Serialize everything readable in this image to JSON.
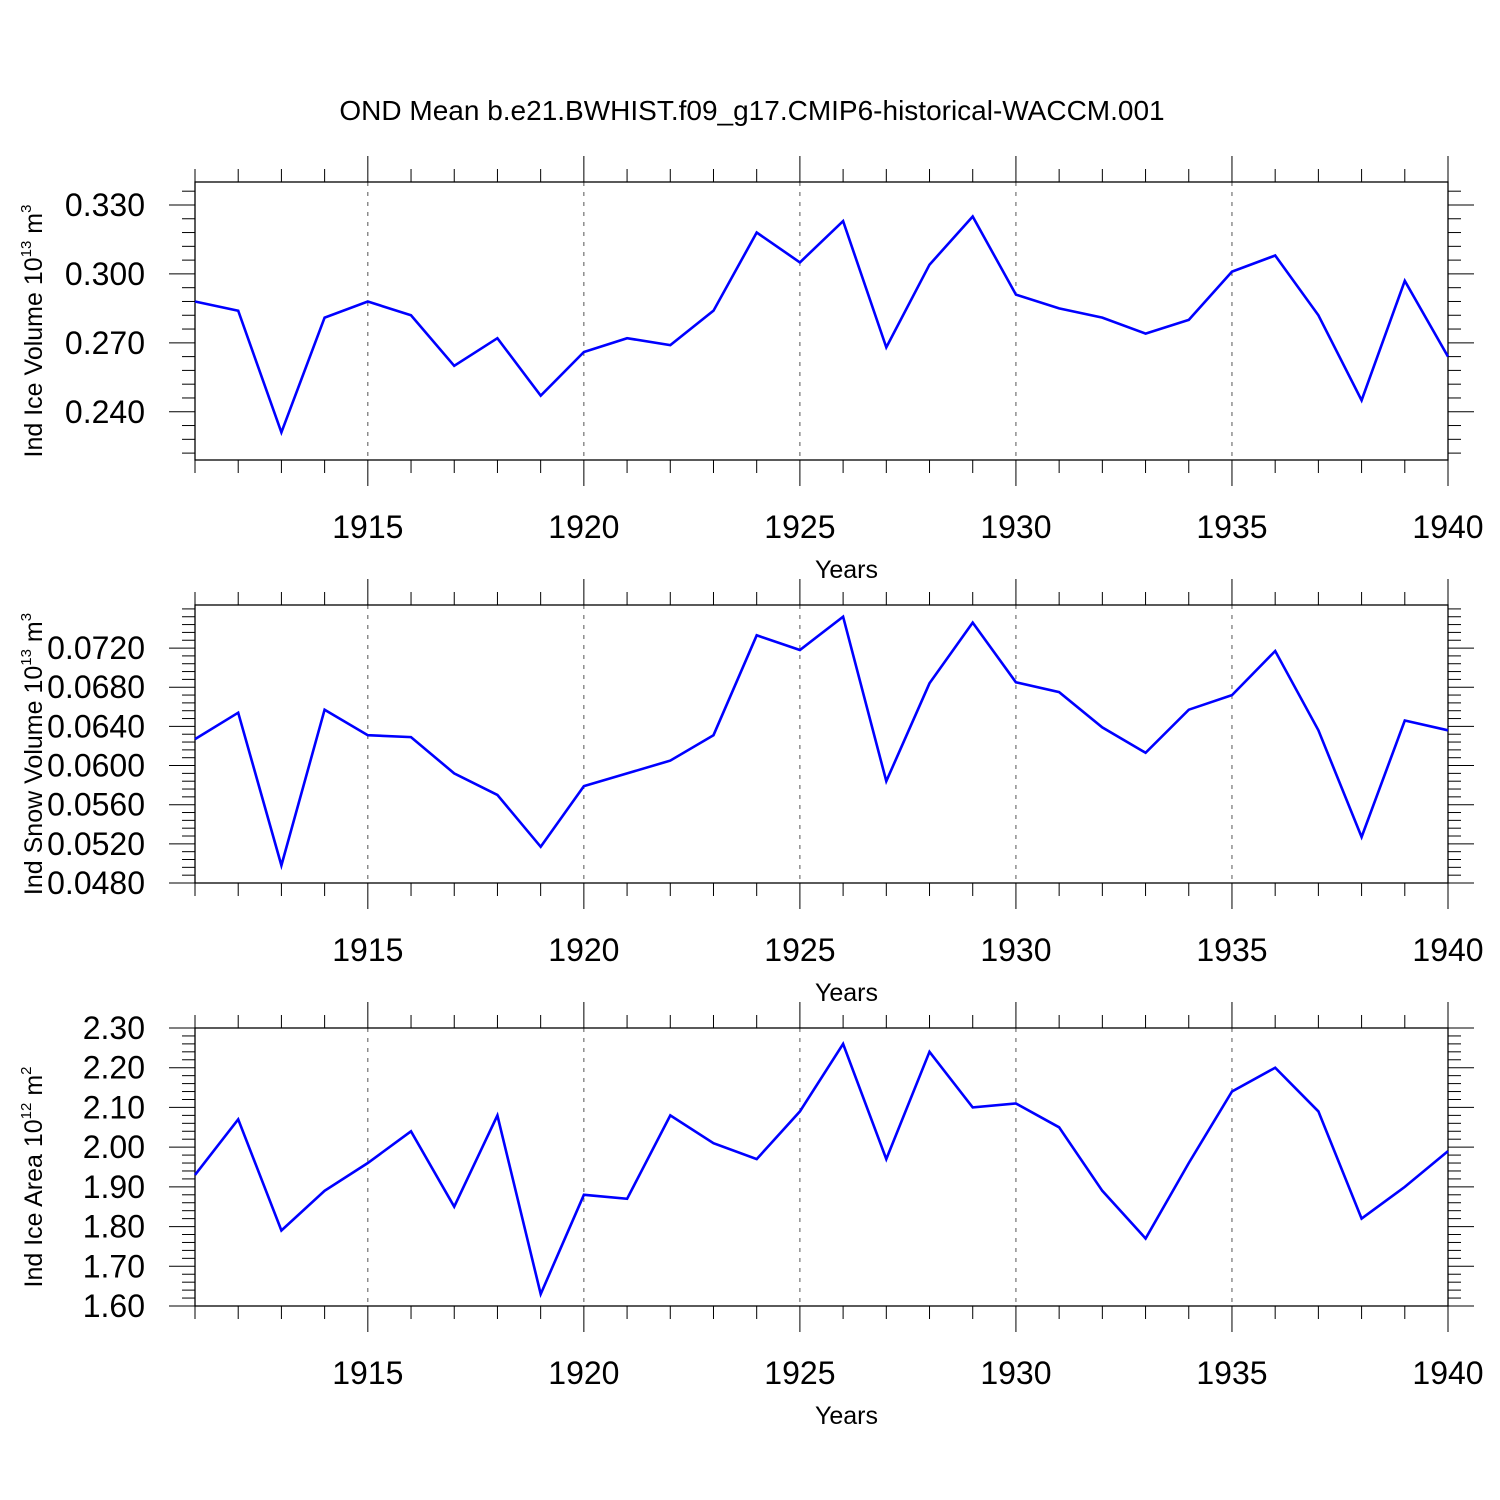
{
  "title": "OND Mean b.e21.BWHIST.f09_g17.CMIP6-historical-WACCM.001",
  "colors": {
    "line": "#0000ff",
    "axis": "#000000",
    "grid": "#555555"
  },
  "chart_data": [
    {
      "type": "line",
      "ylabel": {
        "main": "Ind Ice Volume 10",
        "sup1": "13",
        "mid": " m",
        "sup2": "3"
      },
      "xlabel": "Years",
      "xlim": [
        1911,
        1940
      ],
      "ylim": [
        0.219,
        0.34
      ],
      "xticks": [
        "1915",
        "1920",
        "1925",
        "1930",
        "1935",
        "1940"
      ],
      "yticks": [
        "0.240",
        "0.270",
        "0.300",
        "0.330"
      ],
      "ytick_values": [
        0.24,
        0.27,
        0.3,
        0.33
      ],
      "x": [
        1911,
        1912,
        1913,
        1914,
        1915,
        1916,
        1917,
        1918,
        1919,
        1920,
        1921,
        1922,
        1923,
        1924,
        1925,
        1926,
        1927,
        1928,
        1929,
        1930,
        1931,
        1932,
        1933,
        1934,
        1935,
        1936,
        1937,
        1938,
        1939,
        1940
      ],
      "values": [
        0.288,
        0.284,
        0.231,
        0.281,
        0.288,
        0.282,
        0.26,
        0.272,
        0.247,
        0.266,
        0.272,
        0.269,
        0.284,
        0.318,
        0.305,
        0.323,
        0.268,
        0.304,
        0.325,
        0.291,
        0.285,
        0.281,
        0.274,
        0.28,
        0.301,
        0.308,
        0.282,
        0.245,
        0.297,
        0.264
      ],
      "grid_x": [
        1915,
        1920,
        1925,
        1930,
        1935
      ]
    },
    {
      "type": "line",
      "ylabel": {
        "main": "Ind Snow Volume 10",
        "sup1": "13",
        "mid": " m",
        "sup2": "3"
      },
      "xlabel": "Years",
      "xlim": [
        1911,
        1940
      ],
      "ylim": [
        0.048,
        0.0764
      ],
      "xticks": [
        "1915",
        "1920",
        "1925",
        "1930",
        "1935",
        "1940"
      ],
      "yticks": [
        "0.0480",
        "0.0520",
        "0.0560",
        "0.0600",
        "0.0640",
        "0.0680",
        "0.0720"
      ],
      "ytick_values": [
        0.048,
        0.052,
        0.056,
        0.06,
        0.064,
        0.068,
        0.072
      ],
      "x": [
        1911,
        1912,
        1913,
        1914,
        1915,
        1916,
        1917,
        1918,
        1919,
        1920,
        1921,
        1922,
        1923,
        1924,
        1925,
        1926,
        1927,
        1928,
        1929,
        1930,
        1931,
        1932,
        1933,
        1934,
        1935,
        1936,
        1937,
        1938,
        1939,
        1940
      ],
      "values": [
        0.0627,
        0.0654,
        0.0498,
        0.0657,
        0.0631,
        0.0629,
        0.0592,
        0.057,
        0.0517,
        0.0579,
        0.0592,
        0.0605,
        0.0631,
        0.0733,
        0.0718,
        0.0752,
        0.0584,
        0.0684,
        0.0746,
        0.0685,
        0.0675,
        0.0639,
        0.0613,
        0.0657,
        0.0672,
        0.0717,
        0.0636,
        0.0527,
        0.0646,
        0.0636
      ],
      "grid_x": [
        1915,
        1920,
        1925,
        1930,
        1935
      ]
    },
    {
      "type": "line",
      "ylabel": {
        "main": "Ind Ice Area 10",
        "sup1": "12",
        "mid": " m",
        "sup2": "2"
      },
      "xlabel": "Years",
      "xlim": [
        1911,
        1940
      ],
      "ylim": [
        1.6,
        2.3
      ],
      "xticks": [
        "1915",
        "1920",
        "1925",
        "1930",
        "1935",
        "1940"
      ],
      "yticks": [
        "1.60",
        "1.70",
        "1.80",
        "1.90",
        "2.00",
        "2.10",
        "2.20",
        "2.30"
      ],
      "ytick_values": [
        1.6,
        1.7,
        1.8,
        1.9,
        2.0,
        2.1,
        2.2,
        2.3
      ],
      "x": [
        1911,
        1912,
        1913,
        1914,
        1915,
        1916,
        1917,
        1918,
        1919,
        1920,
        1921,
        1922,
        1923,
        1924,
        1925,
        1926,
        1927,
        1928,
        1929,
        1930,
        1931,
        1932,
        1933,
        1934,
        1935,
        1936,
        1937,
        1938,
        1939,
        1940
      ],
      "values": [
        1.93,
        2.07,
        1.79,
        1.89,
        1.96,
        2.04,
        1.85,
        2.08,
        1.63,
        1.88,
        1.87,
        2.08,
        2.01,
        1.97,
        2.09,
        2.26,
        1.97,
        2.24,
        2.1,
        2.11,
        2.05,
        1.89,
        1.77,
        1.96,
        2.14,
        2.2,
        2.09,
        1.82,
        1.9,
        1.99
      ],
      "grid_x": [
        1915,
        1920,
        1925,
        1930,
        1935
      ]
    }
  ]
}
